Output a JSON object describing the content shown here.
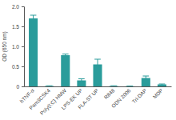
{
  "chart_data": {
    "type": "bar",
    "y_label": "OD (650 nm)",
    "categories": [
      "hTNF-α",
      "Pam3CSK4",
      "Poly(I:C) HMW",
      "LPS-EK UP",
      "FLA-ST UP",
      "R848",
      "ODN 2006",
      "Tri-DAP",
      "MDP"
    ],
    "values": [
      1.7,
      0.01,
      0.78,
      0.15,
      0.55,
      0.01,
      0.005,
      0.21,
      0.05
    ],
    "errors": [
      0.08,
      0.005,
      0.03,
      0.04,
      0.13,
      0.005,
      0.005,
      0.05,
      0.01
    ],
    "color": "#2a9c9b",
    "ylim": [
      0,
      2
    ],
    "yticks": [
      0,
      0.5,
      {
        "value": 1,
        "label": "1.0"
      },
      1.5,
      {
        "value": 2,
        "label": "2.0"
      }
    ],
    "grid": false
  }
}
